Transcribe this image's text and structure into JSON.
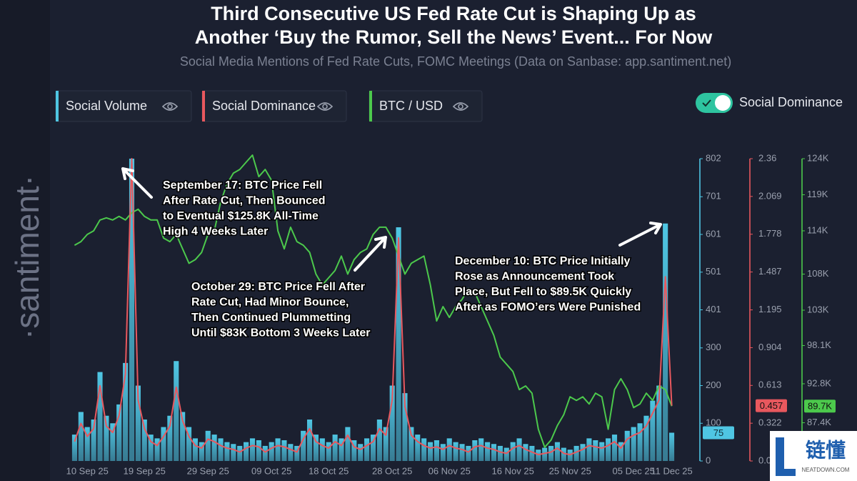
{
  "chart_data": {
    "type": "combo",
    "title": [
      "Third Consecutive US Fed Rate Cut is Shaping Up as",
      "Another ‘Buy the Rumor, Sell the News’ Event... For Now"
    ],
    "subtitle": "Social Media Mentions of Fed Rate Cuts, FOMC Meetings (Data on Sanbase: app.santiment.net)",
    "watermark": "·santiment·",
    "toggle_label": "Social Dominance",
    "logo": {
      "text": "链懂",
      "sub": "NEATDOWN.COM"
    },
    "categories": [
      null,
      null,
      "10 Sep 25",
      null,
      null,
      null,
      null,
      null,
      null,
      null,
      null,
      "19 Sep 25",
      null,
      null,
      null,
      null,
      null,
      null,
      null,
      null,
      null,
      "29 Sep 25",
      null,
      null,
      null,
      null,
      null,
      null,
      null,
      null,
      null,
      "09 Oct 25",
      null,
      null,
      null,
      null,
      null,
      null,
      null,
      null,
      "18 Oct 25",
      null,
      null,
      null,
      null,
      null,
      null,
      null,
      null,
      null,
      "28 Oct 25",
      null,
      null,
      null,
      null,
      null,
      null,
      null,
      null,
      "06 Nov 25",
      null,
      null,
      null,
      null,
      null,
      null,
      null,
      null,
      null,
      "16 Nov 25",
      null,
      null,
      null,
      null,
      null,
      null,
      null,
      null,
      "25 Nov 25",
      null,
      null,
      null,
      null,
      null,
      null,
      null,
      null,
      null,
      "05 Dec 25",
      null,
      null,
      null,
      null,
      null,
      "11 Dec 25"
    ],
    "series": [
      {
        "name": "Social Volume",
        "type": "bar",
        "axis": "y",
        "color": "#4fc6e3",
        "values": [
          70,
          130,
          90,
          110,
          236,
          120,
          100,
          150,
          260,
          802,
          200,
          110,
          70,
          60,
          90,
          120,
          265,
          130,
          90,
          60,
          50,
          80,
          70,
          60,
          50,
          45,
          40,
          50,
          60,
          55,
          40,
          50,
          60,
          55,
          45,
          40,
          80,
          110,
          70,
          60,
          50,
          70,
          60,
          90,
          55,
          45,
          60,
          70,
          110,
          90,
          200,
          620,
          180,
          90,
          70,
          60,
          50,
          55,
          45,
          60,
          50,
          45,
          40,
          55,
          60,
          50,
          45,
          40,
          35,
          50,
          60,
          45,
          40,
          30,
          35,
          40,
          50,
          35,
          30,
          40,
          45,
          60,
          55,
          50,
          60,
          70,
          50,
          80,
          90,
          100,
          120,
          160,
          200,
          630,
          75
        ]
      },
      {
        "name": "Social Dominance",
        "type": "line",
        "axis": "y2",
        "color": "#e8585e",
        "values": [
          0.18,
          0.32,
          0.22,
          0.28,
          0.61,
          0.3,
          0.25,
          0.38,
          0.7,
          2.36,
          0.5,
          0.28,
          0.18,
          0.15,
          0.22,
          0.3,
          0.6,
          0.34,
          0.22,
          0.15,
          0.13,
          0.2,
          0.18,
          0.15,
          0.13,
          0.12,
          0.1,
          0.13,
          0.15,
          0.14,
          0.1,
          0.13,
          0.15,
          0.14,
          0.12,
          0.1,
          0.2,
          0.28,
          0.18,
          0.15,
          0.13,
          0.18,
          0.15,
          0.23,
          0.14,
          0.12,
          0.15,
          0.18,
          0.28,
          0.23,
          0.5,
          1.75,
          0.45,
          0.23,
          0.18,
          0.15,
          0.13,
          0.14,
          0.12,
          0.15,
          0.13,
          0.12,
          0.1,
          0.14,
          0.15,
          0.13,
          0.12,
          0.1,
          0.09,
          0.13,
          0.15,
          0.12,
          0.1,
          0.08,
          0.09,
          0.1,
          0.13,
          0.09,
          0.08,
          0.1,
          0.12,
          0.15,
          0.14,
          0.13,
          0.15,
          0.18,
          0.13,
          0.2,
          0.23,
          0.25,
          0.3,
          0.4,
          0.5,
          1.45,
          0.457
        ]
      },
      {
        "name": "BTC / USD",
        "type": "line",
        "axis": "y3",
        "color": "#4cc94c",
        "last_label": "89.7K",
        "values": [
          112000,
          112500,
          113500,
          114000,
          115500,
          115800,
          115500,
          116000,
          115500,
          116500,
          117000,
          116000,
          115500,
          115500,
          113000,
          112500,
          113500,
          111500,
          109500,
          110000,
          111000,
          113500,
          114000,
          118000,
          120500,
          122000,
          122500,
          123500,
          124500,
          121500,
          122500,
          121000,
          114000,
          111500,
          114500,
          112500,
          112000,
          111000,
          108000,
          106500,
          107500,
          108500,
          110500,
          108000,
          110000,
          111000,
          111500,
          113500,
          114500,
          114500,
          113000,
          110500,
          108000,
          109500,
          110000,
          110500,
          106500,
          101500,
          103500,
          102000,
          103500,
          104500,
          106000,
          105500,
          103500,
          101500,
          99500,
          96500,
          95500,
          94500,
          92000,
          92500,
          91500,
          86500,
          84000,
          85000,
          87000,
          88500,
          91000,
          90500,
          91000,
          90000,
          91500,
          91000,
          86500,
          92000,
          93500,
          92000,
          89500,
          90000,
          91500,
          90500,
          92500,
          92000,
          89700
        ]
      }
    ],
    "ylim": [
      0,
      802
    ],
    "yticks": [
      0,
      100,
      200,
      300,
      401,
      501,
      601,
      701,
      802
    ],
    "y2lim": [
      0.031,
      2.36
    ],
    "y2ticks": [
      0.031,
      0.322,
      0.613,
      0.904,
      1.195,
      1.487,
      1.778,
      2.069,
      2.36
    ],
    "y3lim": [
      82100,
      124000
    ],
    "y3ticks": [
      {
        "value": 87400,
        "label": "87.4K"
      },
      {
        "value": 92800,
        "label": "92.8K"
      },
      {
        "value": 98100,
        "label": "98.1K"
      },
      {
        "value": 103000,
        "label": "103K"
      },
      {
        "value": 108000,
        "label": "108K"
      },
      {
        "value": 114000,
        "label": "114K"
      },
      {
        "value": 119000,
        "label": "119K"
      },
      {
        "value": 124000,
        "label": "124K"
      }
    ],
    "annotations": [
      [
        "September 17: BTC Price Fell",
        "After Rate Cut, Then Bounced",
        "to Eventual $125.8K All-Time",
        "High 4 Weeks Later"
      ],
      [
        "October 29: BTC Price Fell After",
        "Rate Cut, Had Minor Bounce,",
        "Then Continued Plummetting",
        "Until $83K Bottom 3 Weeks Later"
      ],
      [
        "December 10: BTC Price Initially",
        "Rose as Announcement Took",
        "Place, But Fell to $89.5K Quickly",
        "After as FOMO’ers Were Punished"
      ]
    ]
  }
}
